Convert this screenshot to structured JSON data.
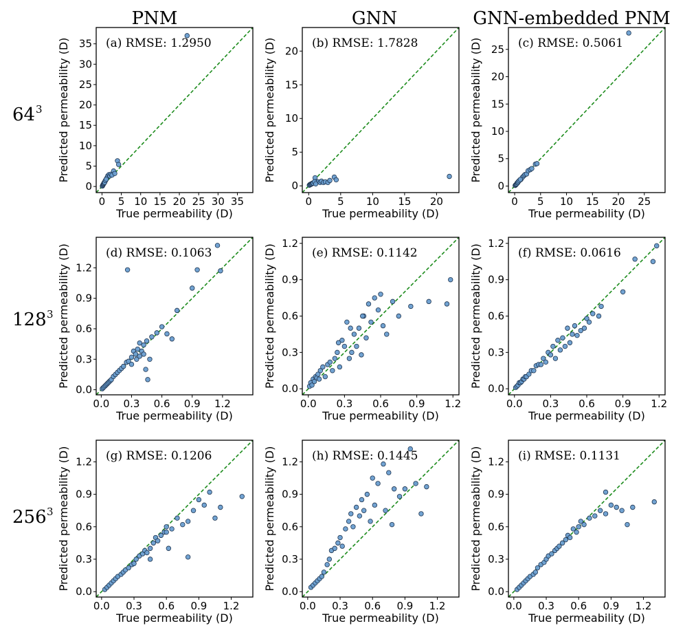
{
  "column_titles": [
    "PNM",
    "GNN",
    "GNN-embedded PNM"
  ],
  "row_labels": [
    {
      "base": "64",
      "sup": "3"
    },
    {
      "base": "128",
      "sup": "3"
    },
    {
      "base": "256",
      "sup": "3"
    }
  ],
  "colors": {
    "point_fill": "#6a9ed0",
    "point_edge": "#1f3550",
    "ref_line": "#1a8a1a",
    "axis": "#000000"
  },
  "chart_data": [
    {
      "type": "scatter",
      "annotation": "(a) RMSE: 1.2950",
      "xlabel": "True permeability (D)",
      "ylabel": "Predicted permeability (D)",
      "xlim": [
        -1.5,
        39
      ],
      "ylim": [
        -1.5,
        39
      ],
      "xticks": [
        0,
        5,
        10,
        15,
        20,
        25,
        30,
        35
      ],
      "yticks": [
        0,
        5,
        10,
        15,
        20,
        25,
        30,
        35
      ],
      "x": [
        0.1,
        0.2,
        0.3,
        0.4,
        0.5,
        0.6,
        0.8,
        1.0,
        1.2,
        1.5,
        1.8,
        2.0,
        2.3,
        2.6,
        3.0,
        3.3,
        4.0,
        4.3,
        0.7,
        0.9,
        1.1,
        22.0
      ],
      "y": [
        0.1,
        0.3,
        0.5,
        0.6,
        0.8,
        1.0,
        1.3,
        1.6,
        2.0,
        2.6,
        2.9,
        2.6,
        3.0,
        2.8,
        3.8,
        3.2,
        6.3,
        5.4,
        1.0,
        1.5,
        1.8,
        37.0
      ]
    },
    {
      "type": "scatter",
      "annotation": "(b) RMSE: 1.7828",
      "xlabel": "True permeability (D)",
      "ylabel": "Predicted permeability (D)",
      "xlim": [
        -1,
        23.5
      ],
      "ylim": [
        -1,
        23.5
      ],
      "xticks": [
        0,
        5,
        10,
        15,
        20
      ],
      "yticks": [
        0,
        5,
        10,
        15,
        20
      ],
      "x": [
        0.1,
        0.2,
        0.3,
        0.4,
        0.5,
        0.6,
        0.8,
        1.0,
        1.2,
        1.5,
        1.8,
        2.0,
        2.3,
        2.6,
        3.0,
        3.3,
        4.0,
        4.3,
        0.7,
        0.9,
        1.1,
        22.0
      ],
      "y": [
        0.1,
        0.2,
        0.2,
        0.3,
        0.3,
        0.4,
        0.5,
        1.2,
        0.6,
        0.6,
        0.5,
        0.7,
        0.5,
        0.6,
        0.5,
        0.8,
        1.3,
        0.9,
        0.4,
        0.6,
        0.3,
        1.4
      ]
    },
    {
      "type": "scatter",
      "annotation": "(c) RMSE: 0.5061",
      "xlabel": "True permeability (D)",
      "ylabel": "Predicted permeability (D)",
      "xlim": [
        -1.2,
        29
      ],
      "ylim": [
        -1.2,
        29
      ],
      "xticks": [
        0,
        5,
        10,
        15,
        20,
        25
      ],
      "yticks": [
        0,
        5,
        10,
        15,
        20,
        25
      ],
      "x": [
        0.1,
        0.2,
        0.3,
        0.4,
        0.5,
        0.6,
        0.8,
        1.0,
        1.2,
        1.5,
        1.8,
        2.0,
        2.3,
        2.6,
        3.0,
        3.3,
        4.0,
        4.3,
        0.7,
        0.9,
        1.1,
        22.0
      ],
      "y": [
        0.1,
        0.2,
        0.3,
        0.4,
        0.6,
        0.6,
        0.9,
        1.1,
        1.2,
        1.6,
        1.9,
        2.1,
        2.2,
        2.8,
        3.0,
        3.2,
        4.0,
        4.1,
        0.8,
        1.0,
        1.2,
        28.0
      ]
    },
    {
      "type": "scatter",
      "annotation": "(d) RMSE: 0.1063",
      "xlabel": "True permeability (D)",
      "ylabel": "Predicted permeability (D)",
      "xlim": [
        -0.05,
        1.5
      ],
      "ylim": [
        -0.05,
        1.5
      ],
      "xticks": [
        0.0,
        0.3,
        0.6,
        0.9,
        1.2
      ],
      "yticks": [
        0.0,
        0.3,
        0.6,
        0.9,
        1.2
      ],
      "x": [
        0.01,
        0.02,
        0.03,
        0.04,
        0.05,
        0.06,
        0.07,
        0.08,
        0.09,
        0.1,
        0.12,
        0.14,
        0.16,
        0.18,
        0.2,
        0.22,
        0.25,
        0.27,
        0.3,
        0.32,
        0.34,
        0.36,
        0.38,
        0.4,
        0.42,
        0.44,
        0.46,
        0.48,
        0.5,
        0.55,
        0.6,
        0.65,
        0.7,
        0.75,
        0.9,
        0.95,
        1.15,
        1.18,
        0.26,
        0.42,
        0.45,
        0.35,
        0.3,
        0.38
      ],
      "y": [
        0.01,
        0.02,
        0.03,
        0.04,
        0.05,
        0.06,
        0.07,
        0.08,
        0.09,
        0.1,
        0.13,
        0.15,
        0.17,
        0.19,
        0.21,
        0.23,
        0.27,
        0.28,
        0.32,
        0.38,
        0.35,
        0.4,
        0.46,
        0.38,
        0.35,
        0.2,
        0.1,
        0.3,
        0.52,
        0.56,
        0.62,
        0.55,
        0.5,
        0.78,
        1.0,
        1.18,
        1.42,
        1.17,
        1.18,
        0.44,
        0.48,
        0.3,
        0.25,
        0.33
      ]
    },
    {
      "type": "scatter",
      "annotation": "(e) RMSE: 0.1142",
      "xlabel": "True permeability (D)",
      "ylabel": "Predicted permeability (D)",
      "xlim": [
        -0.05,
        1.25
      ],
      "ylim": [
        -0.05,
        1.25
      ],
      "xticks": [
        0.0,
        0.3,
        0.6,
        0.9,
        1.2
      ],
      "yticks": [
        0.0,
        0.3,
        0.6,
        0.9,
        1.2
      ],
      "x": [
        0.01,
        0.02,
        0.03,
        0.04,
        0.05,
        0.06,
        0.07,
        0.08,
        0.09,
        0.1,
        0.12,
        0.14,
        0.16,
        0.18,
        0.2,
        0.22,
        0.24,
        0.26,
        0.28,
        0.3,
        0.32,
        0.34,
        0.36,
        0.38,
        0.4,
        0.42,
        0.44,
        0.46,
        0.48,
        0.5,
        0.52,
        0.55,
        0.58,
        0.6,
        0.62,
        0.65,
        0.7,
        0.75,
        0.85,
        1.0,
        1.15,
        1.18,
        0.25,
        0.35,
        0.45
      ],
      "y": [
        0.02,
        0.05,
        0.03,
        0.08,
        0.06,
        0.1,
        0.09,
        0.12,
        0.08,
        0.15,
        0.18,
        0.1,
        0.2,
        0.22,
        0.15,
        0.25,
        0.3,
        0.18,
        0.4,
        0.35,
        0.55,
        0.25,
        0.3,
        0.45,
        0.35,
        0.5,
        0.28,
        0.6,
        0.42,
        0.7,
        0.55,
        0.75,
        0.65,
        0.78,
        0.52,
        0.45,
        0.72,
        0.6,
        0.68,
        0.72,
        0.7,
        0.9,
        0.38,
        0.5,
        0.6
      ]
    },
    {
      "type": "scatter",
      "annotation": "(f) RMSE: 0.0616",
      "xlabel": "True permeability (D)",
      "ylabel": "Predicted permeability (D)",
      "xlim": [
        -0.05,
        1.25
      ],
      "ylim": [
        -0.05,
        1.25
      ],
      "xticks": [
        0.0,
        0.3,
        0.6,
        0.9,
        1.2
      ],
      "yticks": [
        0.0,
        0.3,
        0.6,
        0.9,
        1.2
      ],
      "x": [
        0.01,
        0.02,
        0.03,
        0.04,
        0.05,
        0.06,
        0.07,
        0.08,
        0.09,
        0.1,
        0.12,
        0.14,
        0.16,
        0.18,
        0.2,
        0.22,
        0.24,
        0.26,
        0.28,
        0.3,
        0.32,
        0.34,
        0.36,
        0.38,
        0.4,
        0.42,
        0.44,
        0.46,
        0.48,
        0.5,
        0.52,
        0.55,
        0.58,
        0.6,
        0.62,
        0.65,
        0.7,
        0.72,
        0.9,
        1.0,
        1.15,
        1.18
      ],
      "y": [
        0.01,
        0.02,
        0.03,
        0.05,
        0.05,
        0.06,
        0.08,
        0.08,
        0.1,
        0.1,
        0.12,
        0.15,
        0.15,
        0.19,
        0.2,
        0.2,
        0.25,
        0.22,
        0.3,
        0.28,
        0.35,
        0.25,
        0.4,
        0.32,
        0.42,
        0.35,
        0.5,
        0.38,
        0.45,
        0.52,
        0.44,
        0.48,
        0.5,
        0.58,
        0.55,
        0.62,
        0.6,
        0.68,
        0.8,
        1.07,
        1.05,
        1.18
      ]
    },
    {
      "type": "scatter",
      "annotation": "(g) RMSE: 0.1206",
      "xlabel": "True permeability (D)",
      "ylabel": "Predicted permeability (D)",
      "xlim": [
        -0.05,
        1.4
      ],
      "ylim": [
        -0.05,
        1.4
      ],
      "xticks": [
        0.0,
        0.3,
        0.6,
        0.9,
        1.2
      ],
      "yticks": [
        0.0,
        0.3,
        0.6,
        0.9,
        1.2
      ],
      "x": [
        0.03,
        0.05,
        0.07,
        0.09,
        0.11,
        0.13,
        0.15,
        0.18,
        0.2,
        0.22,
        0.25,
        0.28,
        0.3,
        0.32,
        0.35,
        0.38,
        0.4,
        0.42,
        0.45,
        0.48,
        0.5,
        0.52,
        0.55,
        0.58,
        0.6,
        0.62,
        0.65,
        0.7,
        0.75,
        0.8,
        0.85,
        0.9,
        0.95,
        1.0,
        1.05,
        1.1,
        1.3,
        0.45,
        0.6,
        0.8
      ],
      "y": [
        0.02,
        0.04,
        0.06,
        0.08,
        0.1,
        0.12,
        0.14,
        0.16,
        0.18,
        0.2,
        0.22,
        0.25,
        0.26,
        0.3,
        0.33,
        0.35,
        0.38,
        0.36,
        0.4,
        0.45,
        0.5,
        0.47,
        0.52,
        0.55,
        0.6,
        0.4,
        0.58,
        0.68,
        0.62,
        0.65,
        0.75,
        0.85,
        0.8,
        0.92,
        0.68,
        0.78,
        0.88,
        0.3,
        0.55,
        0.32
      ]
    },
    {
      "type": "scatter",
      "annotation": "(h) RMSE: 0.1445",
      "xlabel": "True permeability (D)",
      "ylabel": "Predicted permeability (D)",
      "xlim": [
        -0.05,
        1.4
      ],
      "ylim": [
        -0.05,
        1.4
      ],
      "xticks": [
        0.0,
        0.3,
        0.6,
        0.9,
        1.2
      ],
      "yticks": [
        0.0,
        0.3,
        0.6,
        0.9,
        1.2
      ],
      "x": [
        0.03,
        0.05,
        0.07,
        0.09,
        0.11,
        0.13,
        0.15,
        0.18,
        0.2,
        0.22,
        0.25,
        0.28,
        0.3,
        0.32,
        0.35,
        0.38,
        0.4,
        0.42,
        0.45,
        0.48,
        0.5,
        0.52,
        0.55,
        0.58,
        0.6,
        0.62,
        0.65,
        0.7,
        0.75,
        0.8,
        0.85,
        0.9,
        0.95,
        1.0,
        1.05,
        1.1,
        0.72,
        0.78
      ],
      "y": [
        0.04,
        0.06,
        0.08,
        0.1,
        0.12,
        0.14,
        0.18,
        0.25,
        0.3,
        0.38,
        0.4,
        0.45,
        0.5,
        0.42,
        0.58,
        0.65,
        0.72,
        0.6,
        0.78,
        0.7,
        0.85,
        0.75,
        0.9,
        0.65,
        1.05,
        0.8,
        1.0,
        1.18,
        1.1,
        0.95,
        0.88,
        0.95,
        1.32,
        1.0,
        0.72,
        0.97,
        0.75,
        0.62
      ]
    },
    {
      "type": "scatter",
      "annotation": "(i) RMSE: 0.1131",
      "xlabel": "True permeability (D)",
      "ylabel": "Predicted permeability (D)",
      "xlim": [
        -0.05,
        1.4
      ],
      "ylim": [
        -0.05,
        1.4
      ],
      "xticks": [
        0.0,
        0.3,
        0.6,
        0.9,
        1.2
      ],
      "yticks": [
        0.0,
        0.3,
        0.6,
        0.9,
        1.2
      ],
      "x": [
        0.03,
        0.05,
        0.07,
        0.09,
        0.11,
        0.13,
        0.15,
        0.18,
        0.2,
        0.22,
        0.25,
        0.28,
        0.3,
        0.32,
        0.35,
        0.38,
        0.4,
        0.42,
        0.45,
        0.48,
        0.5,
        0.52,
        0.55,
        0.58,
        0.6,
        0.62,
        0.65,
        0.7,
        0.75,
        0.8,
        0.85,
        0.9,
        0.95,
        1.0,
        1.05,
        1.1,
        1.3,
        0.85
      ],
      "y": [
        0.02,
        0.04,
        0.06,
        0.08,
        0.1,
        0.12,
        0.14,
        0.16,
        0.18,
        0.22,
        0.25,
        0.27,
        0.3,
        0.33,
        0.35,
        0.38,
        0.4,
        0.42,
        0.45,
        0.48,
        0.52,
        0.5,
        0.58,
        0.55,
        0.6,
        0.65,
        0.62,
        0.68,
        0.7,
        0.75,
        0.72,
        0.8,
        0.78,
        0.75,
        0.62,
        0.78,
        0.83,
        0.92
      ]
    }
  ]
}
